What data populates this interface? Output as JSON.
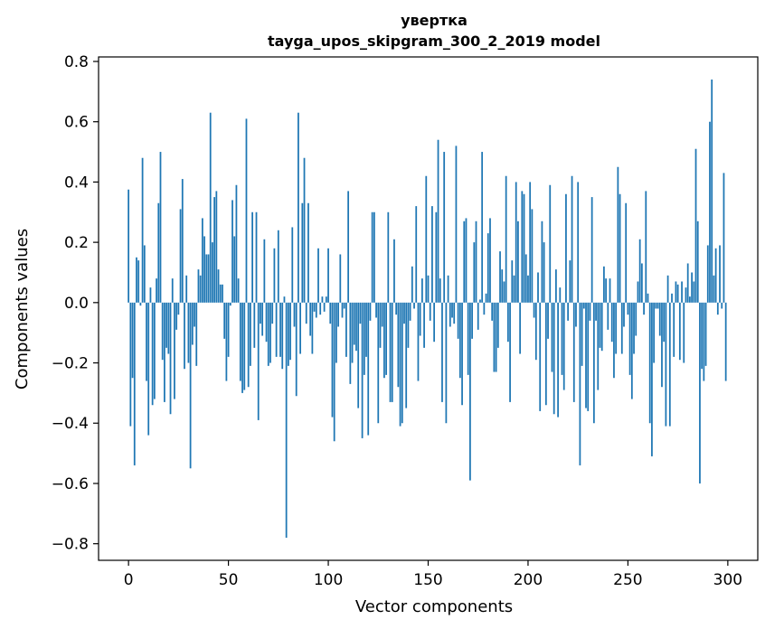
{
  "chart_data": {
    "type": "bar",
    "title": "увертка",
    "subtitle": "tayga_upos_skipgram_300_2_2019 model",
    "xlabel": "Vector components",
    "ylabel": "Components values",
    "xlim": [
      -15,
      315
    ],
    "ylim": [
      -0.855,
      0.815
    ],
    "xticks": [
      0,
      50,
      100,
      150,
      200,
      250,
      300
    ],
    "xtick_labels": [
      "0",
      "50",
      "100",
      "150",
      "200",
      "250",
      "300"
    ],
    "yticks": [
      -0.8,
      -0.6,
      -0.4,
      -0.2,
      0.0,
      0.2,
      0.4,
      0.6,
      0.8
    ],
    "ytick_labels": [
      "−0.8",
      "−0.6",
      "−0.4",
      "−0.2",
      "0.0",
      "0.2",
      "0.4",
      "0.6",
      "0.8"
    ],
    "bar_color": "#1f77b4",
    "categories": [
      0,
      1,
      2,
      3,
      4,
      5,
      6,
      7,
      8,
      9,
      10,
      11,
      12,
      13,
      14,
      15,
      16,
      17,
      18,
      19,
      20,
      21,
      22,
      23,
      24,
      25,
      26,
      27,
      28,
      29,
      30,
      31,
      32,
      33,
      34,
      35,
      36,
      37,
      38,
      39,
      40,
      41,
      42,
      43,
      44,
      45,
      46,
      47,
      48,
      49,
      50,
      51,
      52,
      53,
      54,
      55,
      56,
      57,
      58,
      59,
      60,
      61,
      62,
      63,
      64,
      65,
      66,
      67,
      68,
      69,
      70,
      71,
      72,
      73,
      74,
      75,
      76,
      77,
      78,
      79,
      80,
      81,
      82,
      83,
      84,
      85,
      86,
      87,
      88,
      89,
      90,
      91,
      92,
      93,
      94,
      95,
      96,
      97,
      98,
      99,
      100,
      101,
      102,
      103,
      104,
      105,
      106,
      107,
      108,
      109,
      110,
      111,
      112,
      113,
      114,
      115,
      116,
      117,
      118,
      119,
      120,
      121,
      122,
      123,
      124,
      125,
      126,
      127,
      128,
      129,
      130,
      131,
      132,
      133,
      134,
      135,
      136,
      137,
      138,
      139,
      140,
      141,
      142,
      143,
      144,
      145,
      146,
      147,
      148,
      149,
      150,
      151,
      152,
      153,
      154,
      155,
      156,
      157,
      158,
      159,
      160,
      161,
      162,
      163,
      164,
      165,
      166,
      167,
      168,
      169,
      170,
      171,
      172,
      173,
      174,
      175,
      176,
      177,
      178,
      179,
      180,
      181,
      182,
      183,
      184,
      185,
      186,
      187,
      188,
      189,
      190,
      191,
      192,
      193,
      194,
      195,
      196,
      197,
      198,
      199,
      200,
      201,
      202,
      203,
      204,
      205,
      206,
      207,
      208,
      209,
      210,
      211,
      212,
      213,
      214,
      215,
      216,
      217,
      218,
      219,
      220,
      221,
      222,
      223,
      224,
      225,
      226,
      227,
      228,
      229,
      230,
      231,
      232,
      233,
      234,
      235,
      236,
      237,
      238,
      239,
      240,
      241,
      242,
      243,
      244,
      245,
      246,
      247,
      248,
      249,
      250,
      251,
      252,
      253,
      254,
      255,
      256,
      257,
      258,
      259,
      260,
      261,
      262,
      263,
      264,
      265,
      266,
      267,
      268,
      269,
      270,
      271,
      272,
      273,
      274,
      275,
      276,
      277,
      278,
      279,
      280,
      281,
      282,
      283,
      284,
      285,
      286,
      287,
      288,
      289,
      290,
      291,
      292,
      293,
      294,
      295,
      296,
      297,
      298,
      299
    ],
    "values": [
      0.375,
      -0.41,
      -0.25,
      -0.54,
      0.15,
      0.14,
      -0.01,
      0.48,
      0.19,
      -0.26,
      -0.44,
      0.05,
      -0.34,
      -0.32,
      0.08,
      0.33,
      0.5,
      -0.19,
      -0.33,
      -0.15,
      -0.17,
      -0.37,
      0.08,
      -0.32,
      -0.09,
      -0.04,
      0.31,
      0.41,
      -0.22,
      0.09,
      -0.2,
      -0.55,
      -0.14,
      -0.08,
      -0.21,
      0.11,
      0.09,
      0.28,
      0.22,
      0.16,
      0.16,
      0.63,
      0.2,
      0.35,
      0.37,
      0.11,
      0.06,
      0.06,
      -0.12,
      -0.26,
      -0.18,
      -0.01,
      0.34,
      0.22,
      0.39,
      0.08,
      -0.26,
      -0.3,
      -0.29,
      0.61,
      -0.28,
      -0.21,
      0.3,
      -0.15,
      0.3,
      -0.39,
      -0.07,
      -0.11,
      0.21,
      -0.13,
      -0.21,
      -0.2,
      -0.07,
      0.18,
      -0.18,
      0.24,
      -0.18,
      -0.22,
      0.02,
      -0.78,
      -0.21,
      -0.19,
      0.25,
      -0.08,
      -0.31,
      0.63,
      -0.17,
      0.33,
      0.48,
      -0.07,
      0.33,
      -0.11,
      -0.17,
      -0.03,
      -0.05,
      0.18,
      -0.04,
      0.02,
      -0.03,
      0.02,
      0.18,
      -0.07,
      -0.38,
      -0.46,
      -0.2,
      -0.08,
      0.16,
      -0.05,
      -0.02,
      -0.18,
      0.37,
      -0.27,
      -0.2,
      -0.14,
      -0.16,
      -0.35,
      -0.07,
      -0.45,
      -0.24,
      -0.18,
      -0.44,
      -0.06,
      0.3,
      0.3,
      -0.05,
      -0.4,
      -0.15,
      -0.08,
      -0.25,
      -0.24,
      0.3,
      -0.33,
      -0.33,
      0.21,
      -0.04,
      -0.28,
      -0.41,
      -0.4,
      -0.07,
      -0.35,
      -0.15,
      -0.06,
      0.12,
      -0.02,
      0.32,
      -0.26,
      -0.11,
      0.08,
      -0.15,
      0.42,
      0.09,
      -0.06,
      0.32,
      -0.13,
      0.3,
      0.54,
      0.08,
      -0.33,
      0.5,
      -0.4,
      0.09,
      -0.08,
      -0.05,
      -0.07,
      0.52,
      -0.12,
      -0.25,
      -0.34,
      0.27,
      0.28,
      -0.24,
      -0.59,
      -0.12,
      0.2,
      0.27,
      -0.09,
      0.01,
      0.5,
      -0.04,
      0.03,
      0.23,
      0.28,
      -0.06,
      -0.23,
      -0.23,
      -0.15,
      0.17,
      0.11,
      0.07,
      0.42,
      -0.13,
      -0.33,
      0.14,
      0.09,
      0.4,
      0.27,
      -0.17,
      0.37,
      0.36,
      0.16,
      0.09,
      0.4,
      0.31,
      -0.05,
      -0.19,
      0.1,
      -0.36,
      0.27,
      0.2,
      -0.34,
      -0.12,
      0.39,
      -0.23,
      -0.37,
      0.11,
      -0.38,
      0.05,
      -0.24,
      -0.29,
      0.36,
      -0.06,
      0.14,
      0.42,
      -0.33,
      -0.08,
      0.4,
      -0.54,
      -0.21,
      -0.02,
      -0.35,
      -0.36,
      -0.06,
      0.35,
      -0.4,
      -0.06,
      -0.29,
      -0.15,
      -0.16,
      0.12,
      0.08,
      -0.09,
      0.08,
      -0.13,
      -0.25,
      -0.17,
      0.45,
      0.36,
      -0.17,
      -0.08,
      0.33,
      -0.04,
      -0.24,
      -0.32,
      -0.17,
      -0.11,
      0.07,
      0.21,
      0.13,
      -0.04,
      0.37,
      0.03,
      -0.4,
      -0.51,
      -0.2,
      -0.02,
      -0.02,
      -0.11,
      -0.28,
      -0.13,
      -0.41,
      0.09,
      -0.41,
      0.03,
      -0.18,
      0.07,
      0.06,
      -0.19,
      0.07,
      -0.2,
      0.05,
      0.13,
      0.02,
      0.1,
      0.07,
      0.51,
      0.27,
      -0.6,
      -0.22,
      -0.26,
      -0.21,
      0.19,
      0.6,
      0.74,
      0.09,
      0.18,
      -0.04,
      0.19,
      -0.02,
      0.43,
      -0.26
    ]
  }
}
